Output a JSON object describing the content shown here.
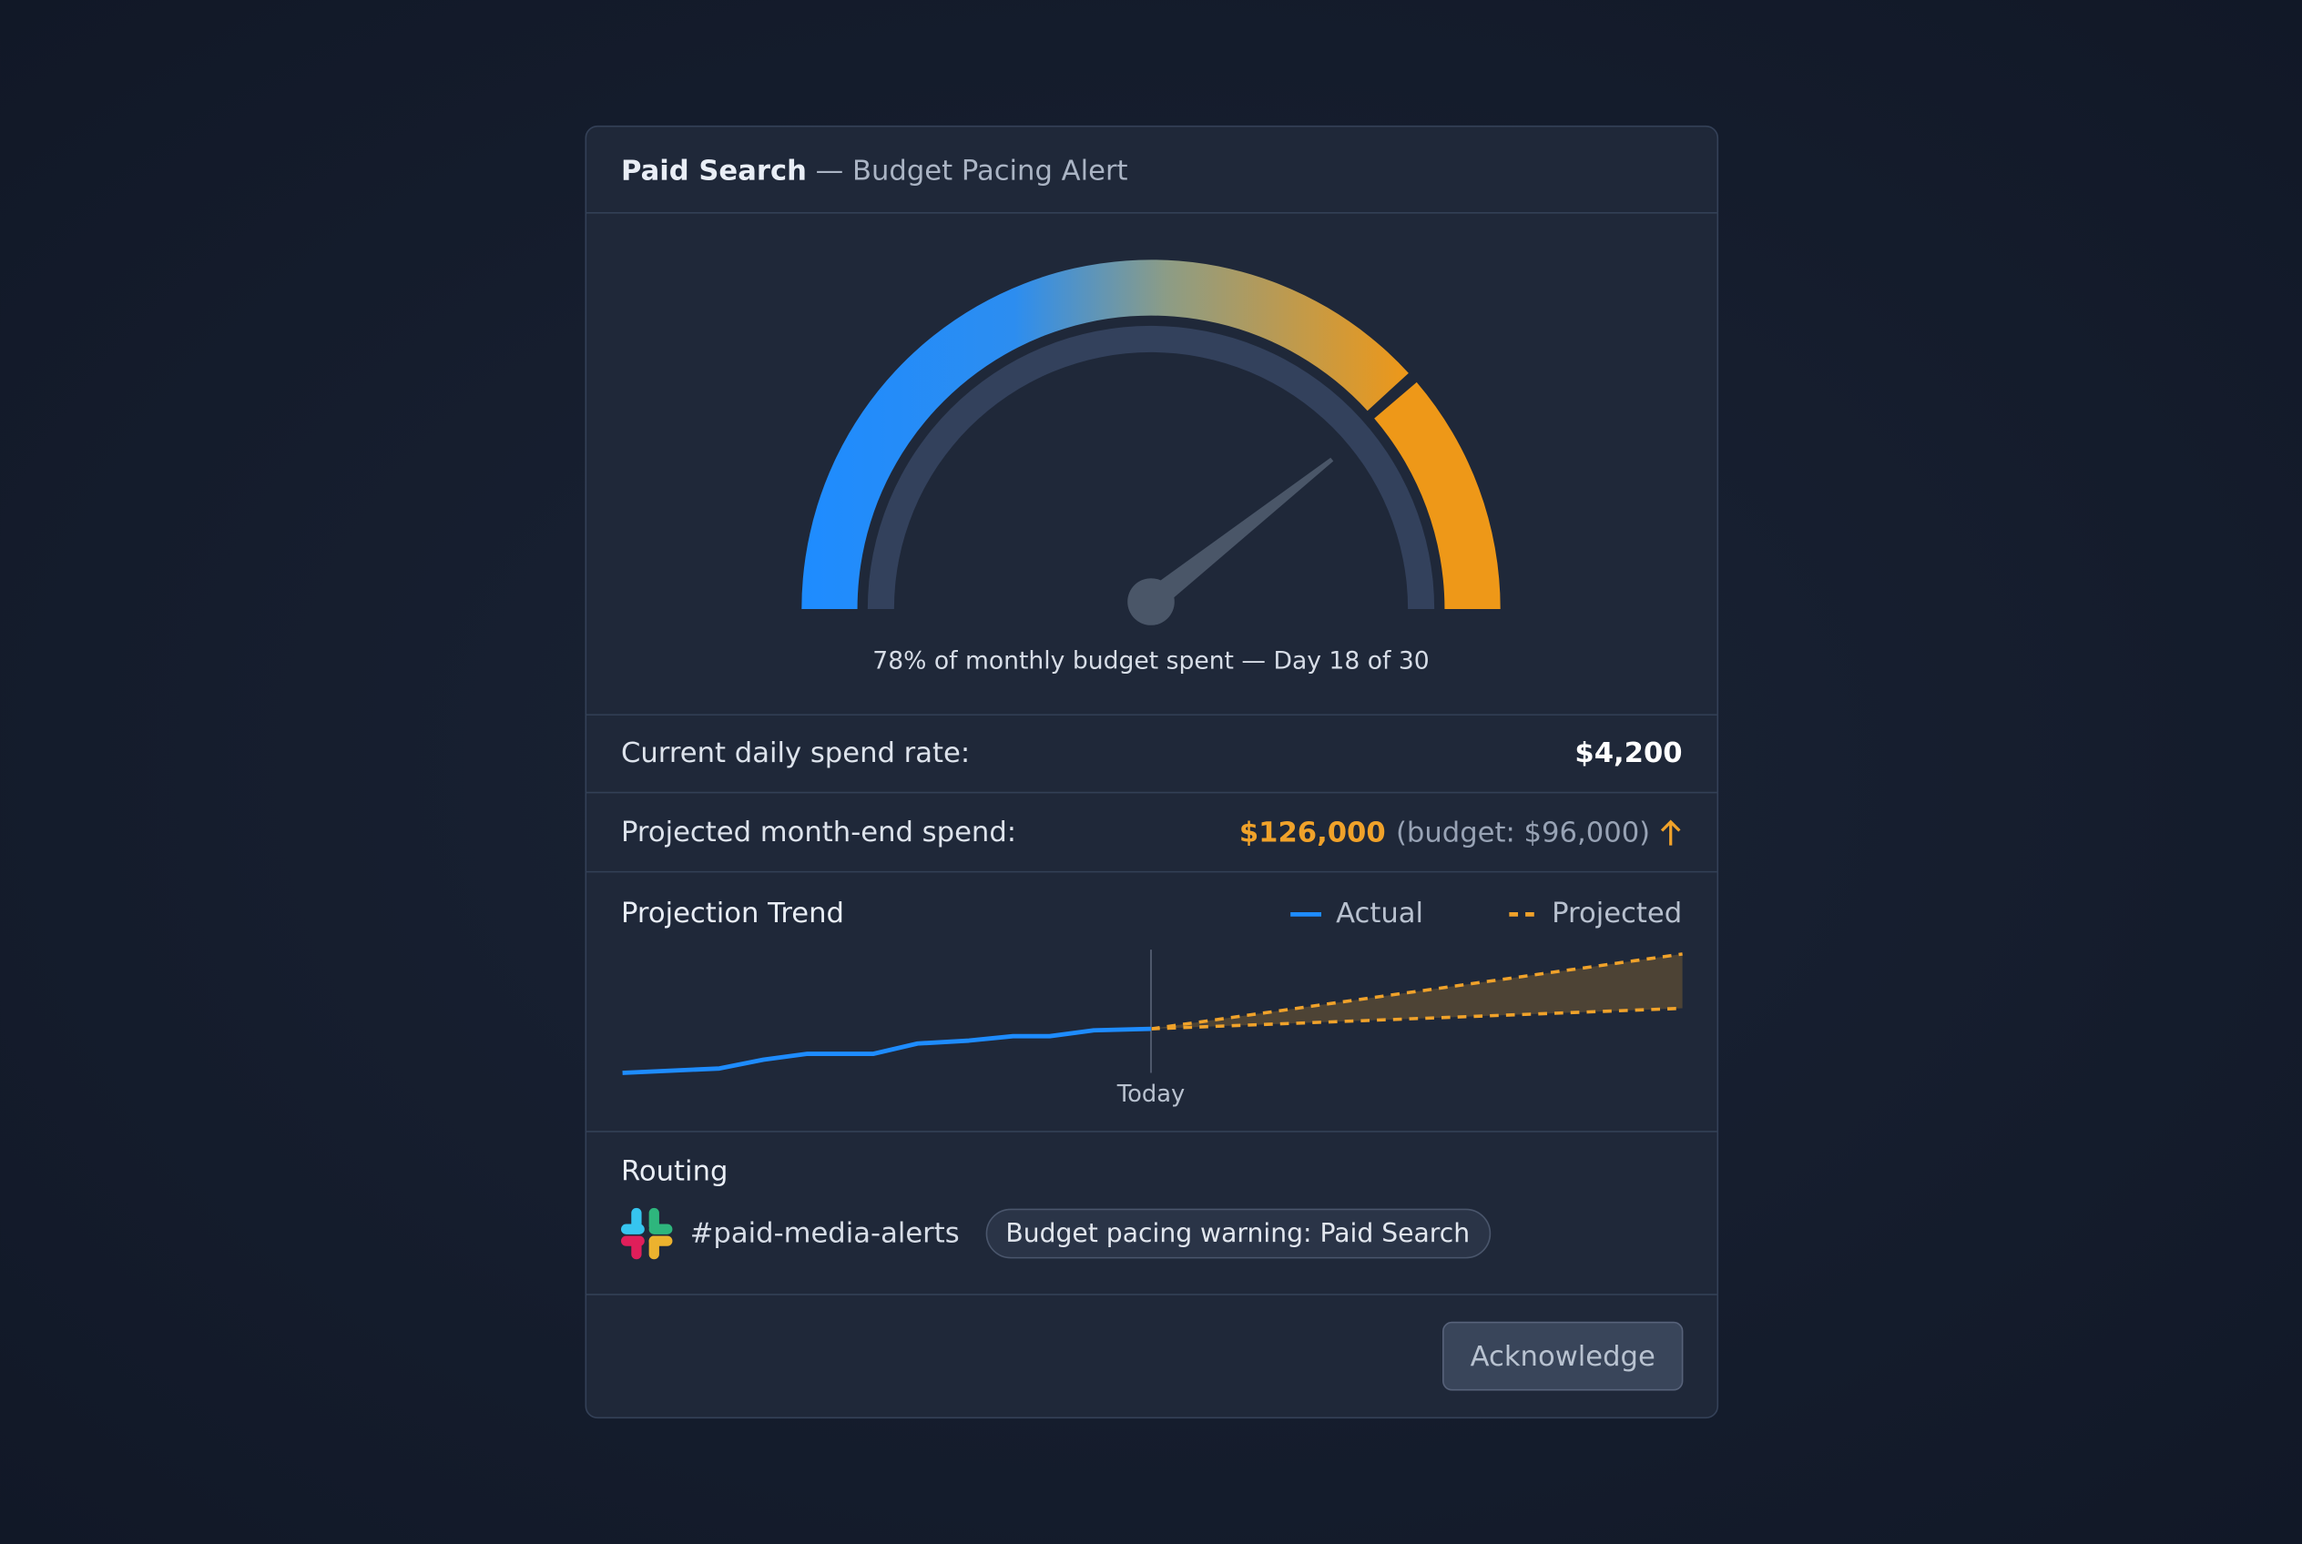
{
  "header": {
    "title": "Paid Search",
    "subtitle": "— Budget Pacing Alert"
  },
  "gauge": {
    "value": 78,
    "caption": "78% of monthly budget spent — Day 18 of 30"
  },
  "metrics": [
    {
      "label": "Current daily spend rate:",
      "value": "$4,200"
    },
    {
      "label": "Projected month-end spend:",
      "value": "$126,000",
      "note": "(budget: $96,000)"
    }
  ],
  "trend": {
    "title": "Projection Trend",
    "legend": [
      "Actual",
      "Projected"
    ],
    "marker": "Today"
  },
  "routing": {
    "title": "Routing",
    "channel": "#paid-media-alerts",
    "message": "Budget pacing warning: Paid Search"
  },
  "actions": {
    "button": "Acknowledge"
  }
}
